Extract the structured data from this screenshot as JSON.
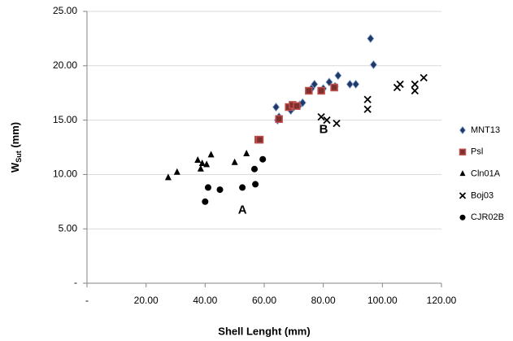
{
  "chart_data": {
    "type": "scatter",
    "xlabel": "Shell Lenght (mm)",
    "ylabel": "W",
    "ylabel_sub": "Sut",
    "ylabel_unit": " (mm)",
    "xlim": [
      0,
      120
    ],
    "xticks": [
      {
        "value": 0,
        "label": "-"
      },
      {
        "value": 20,
        "label": "20.00"
      },
      {
        "value": 40,
        "label": "40.00"
      },
      {
        "value": 60,
        "label": "60.00"
      },
      {
        "value": 80,
        "label": "80.00"
      },
      {
        "value": 100,
        "label": "100.00"
      },
      {
        "value": 120,
        "label": "120.00"
      }
    ],
    "ylim": [
      0,
      25
    ],
    "yticks": [
      {
        "value": 0,
        "label": "-"
      },
      {
        "value": 5,
        "label": "5.00"
      },
      {
        "value": 10,
        "label": "10.00"
      },
      {
        "value": 15,
        "label": "15.00"
      },
      {
        "value": 20,
        "label": "20.00"
      },
      {
        "value": 25,
        "label": "25.00"
      }
    ],
    "grid": true,
    "legend": "right",
    "annotations": [
      {
        "text": "A",
        "x": 52.6,
        "y": 6.7
      },
      {
        "text": "B",
        "x": 80.1,
        "y": 14.1
      }
    ],
    "series": [
      {
        "name": "MNT13",
        "marker": "diamond",
        "color": "#1f3864",
        "x": [
          64,
          64.5,
          65,
          69,
          70,
          72,
          73,
          76,
          77,
          80,
          82,
          84,
          85,
          89,
          91,
          96,
          97
        ],
        "values": [
          16.2,
          15.0,
          15.3,
          15.9,
          16.2,
          16.4,
          16.6,
          17.9,
          18.3,
          17.9,
          18.5,
          18.1,
          19.1,
          18.3,
          18.3,
          22.5,
          20.1
        ]
      },
      {
        "name": "Psl",
        "marker": "square",
        "color": "#c0504d",
        "x": [
          58,
          58.5,
          65,
          68.3,
          69.6,
          71,
          75.1,
          79.3,
          83.7
        ],
        "values": [
          13.2,
          13.2,
          15.1,
          16.2,
          16.4,
          16.3,
          17.7,
          17.7,
          18.0
        ]
      },
      {
        "name": "Cln01A",
        "marker": "triangle",
        "color": "#000000",
        "x": [
          27.5,
          30.5,
          37.5,
          38.5,
          39,
          40.5,
          42,
          50,
          54
        ],
        "values": [
          9.7,
          10.2,
          11.3,
          10.5,
          11.0,
          10.9,
          11.8,
          11.1,
          11.9
        ]
      },
      {
        "name": "Boj03",
        "marker": "x",
        "color": "#000000",
        "x": [
          79.3,
          81.2,
          84.5,
          95,
          95,
          105,
          106,
          111,
          111,
          114
        ],
        "values": [
          15.3,
          15.0,
          14.7,
          16.9,
          16.0,
          18.0,
          18.3,
          17.7,
          18.3,
          18.9
        ]
      },
      {
        "name": "CJR02B",
        "marker": "circle",
        "color": "#000000",
        "x": [
          40,
          41,
          45,
          52.6,
          56.7,
          57,
          59.5
        ],
        "values": [
          7.5,
          8.8,
          8.6,
          8.8,
          10.5,
          9.1,
          11.4
        ]
      }
    ]
  }
}
